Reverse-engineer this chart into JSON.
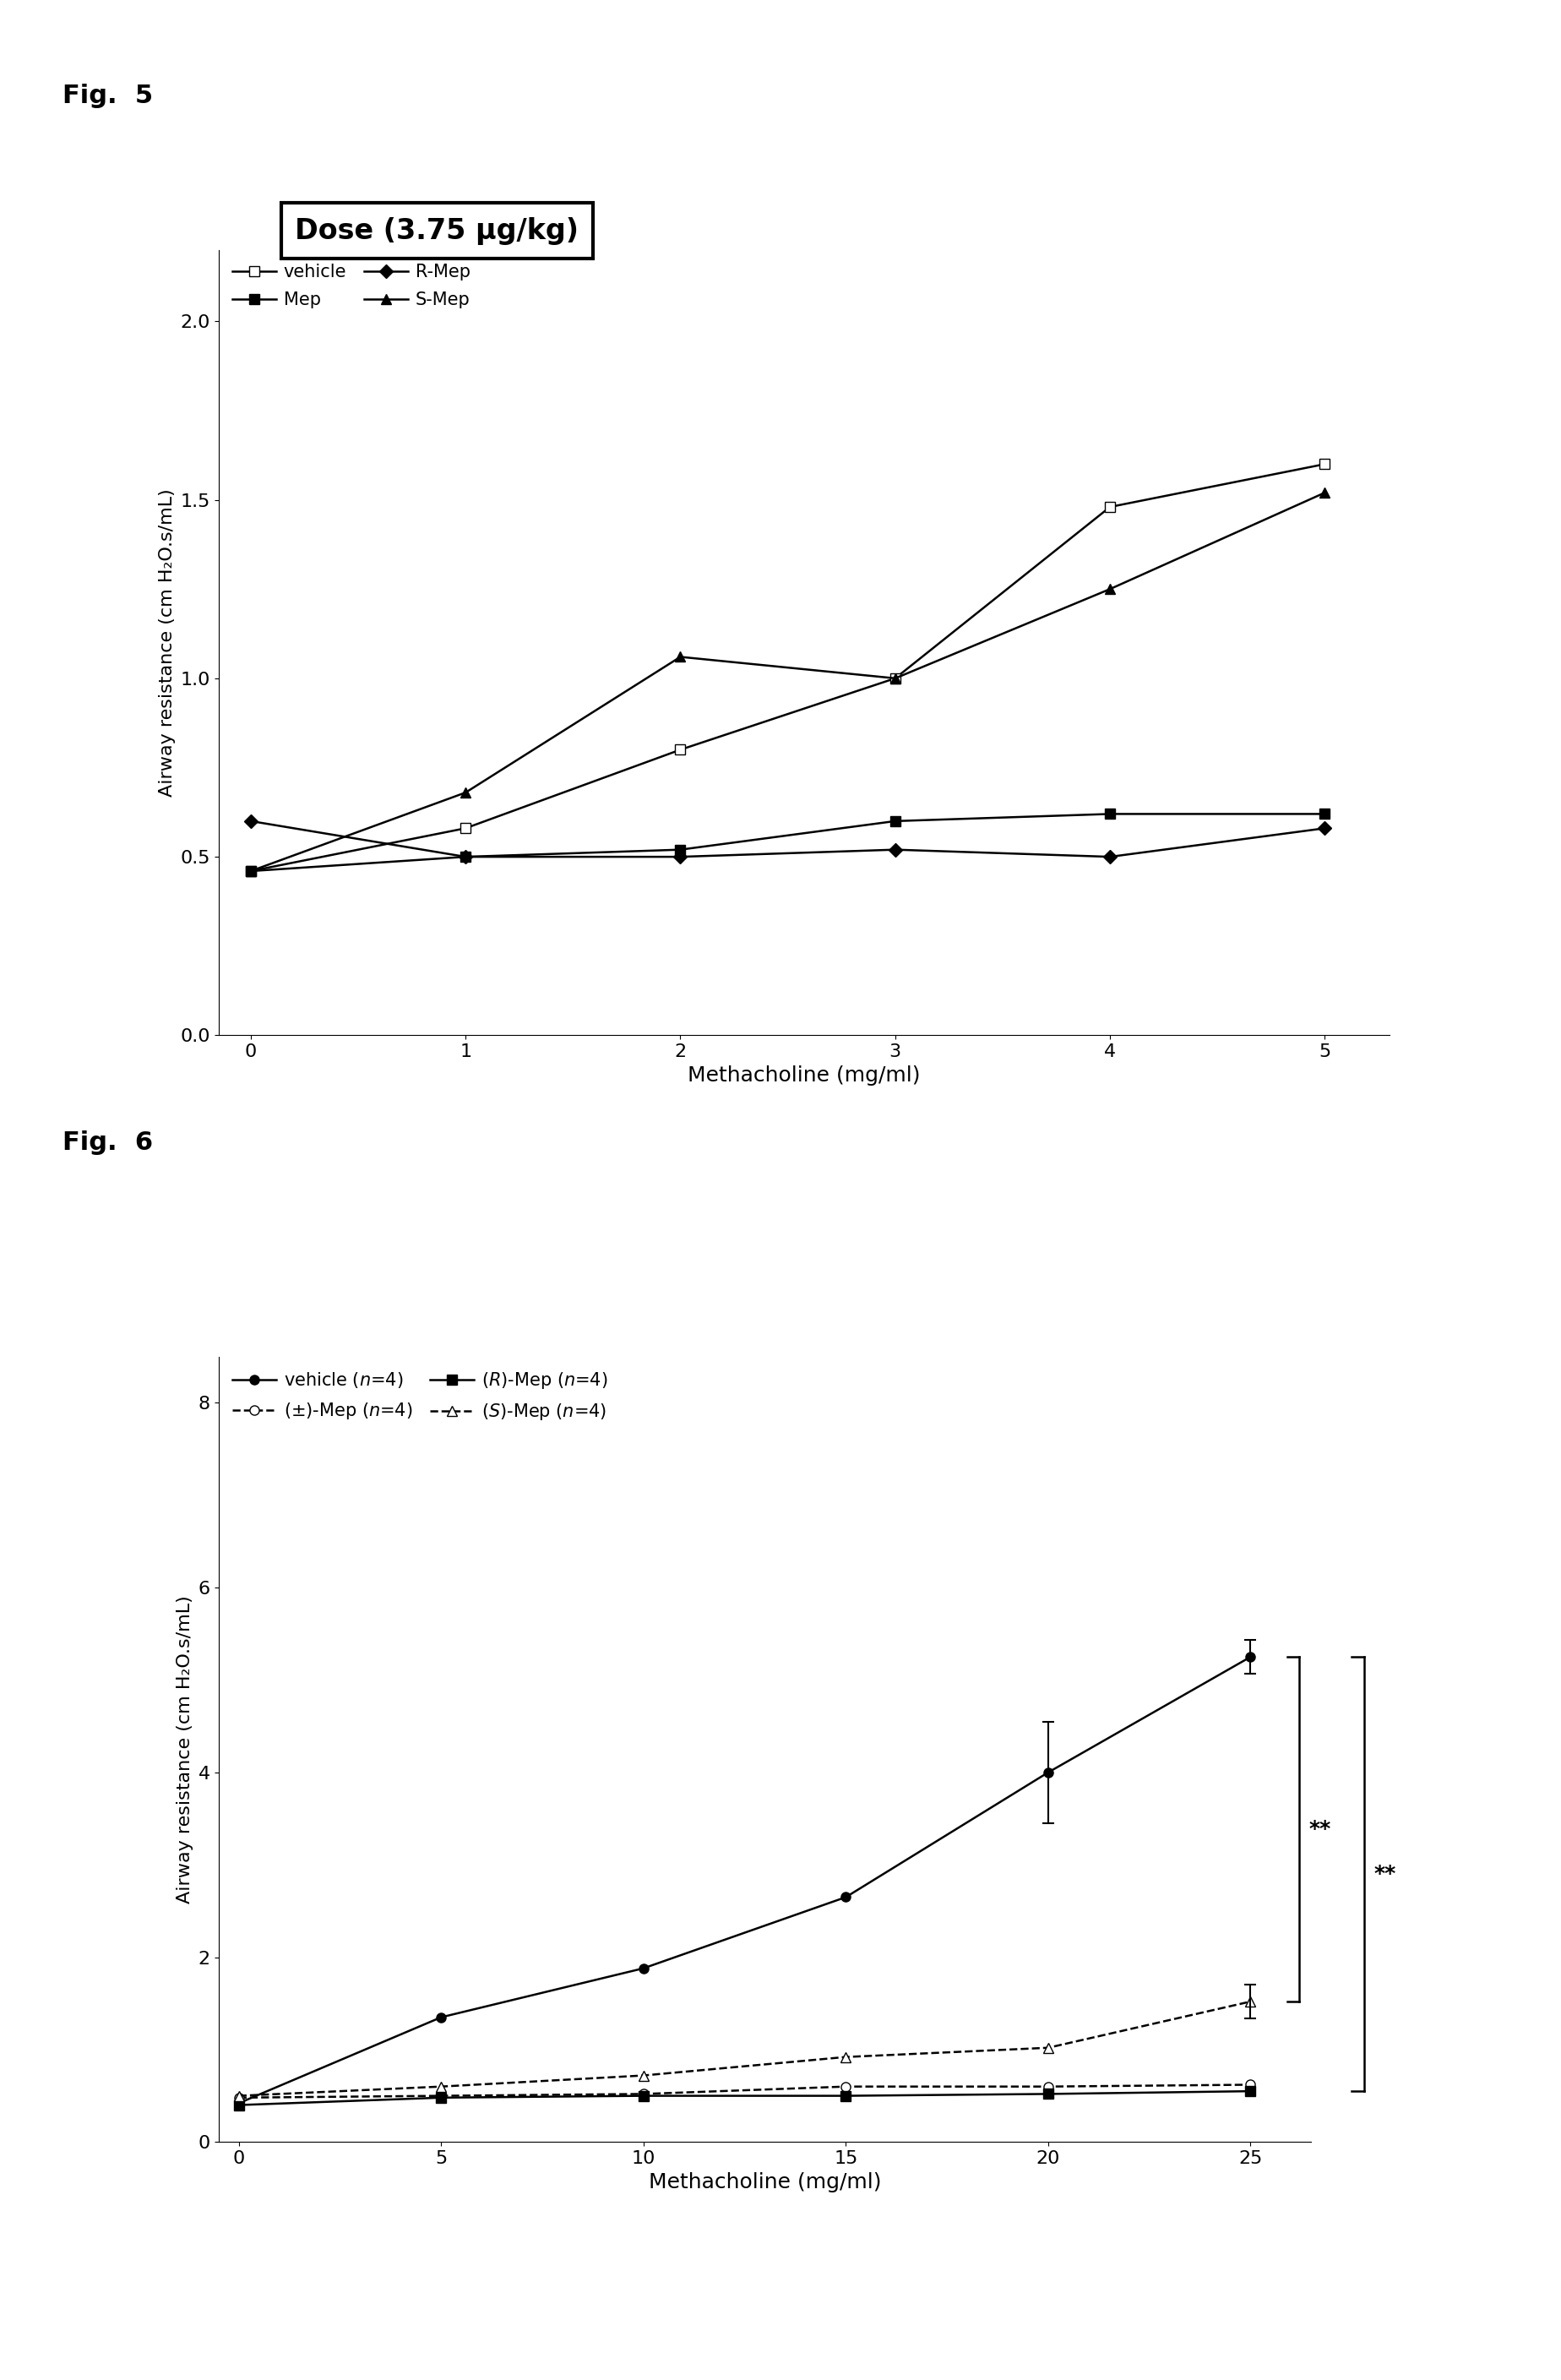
{
  "fig5": {
    "title_label": "Dose (3.75 μg/kg)",
    "xlabel": "Methacholine (mg/ml)",
    "ylabel": "Airway resistance (cm H₂O.s/mL)",
    "xlim": [
      -0.15,
      5.3
    ],
    "ylim": [
      0,
      2.2
    ],
    "yticks": [
      0,
      0.5,
      1.0,
      1.5,
      2.0
    ],
    "xticks": [
      0,
      1,
      2,
      3,
      4,
      5
    ],
    "series": {
      "vehicle": {
        "x": [
          0,
          1,
          2,
          3,
          4,
          5
        ],
        "y": [
          0.46,
          0.58,
          0.8,
          1.0,
          1.48,
          1.6
        ],
        "marker": "s",
        "mfc": "white",
        "color": "black",
        "ls": "-",
        "label": "vehicle"
      },
      "Mep": {
        "x": [
          0,
          1,
          2,
          3,
          4,
          5
        ],
        "y": [
          0.46,
          0.5,
          0.52,
          0.6,
          0.62,
          0.62
        ],
        "marker": "s",
        "mfc": "black",
        "color": "black",
        "ls": "-",
        "label": "Mep"
      },
      "R-Mep": {
        "x": [
          0,
          1,
          2,
          3,
          4,
          5
        ],
        "y": [
          0.6,
          0.5,
          0.5,
          0.52,
          0.5,
          0.58
        ],
        "marker": "D",
        "mfc": "black",
        "color": "black",
        "ls": "-",
        "label": "R-Mep"
      },
      "S-Mep": {
        "x": [
          0,
          1,
          2,
          3,
          4,
          5
        ],
        "y": [
          0.46,
          0.68,
          1.06,
          1.0,
          1.25,
          1.52
        ],
        "marker": "^",
        "mfc": "black",
        "color": "black",
        "ls": "-",
        "label": "S-Mep"
      }
    }
  },
  "fig6": {
    "xlabel": "Methacholine (mg/ml)",
    "ylabel": "Airway resistance (cm H₂O.s/mL)",
    "xlim": [
      -0.5,
      26.5
    ],
    "ylim": [
      0,
      8.5
    ],
    "yticks": [
      0,
      2,
      4,
      6,
      8
    ],
    "xticks": [
      0,
      5,
      10,
      15,
      20,
      25
    ],
    "series": {
      "vehicle": {
        "x": [
          0,
          5,
          10,
          15,
          20,
          25
        ],
        "y": [
          0.42,
          1.35,
          1.88,
          2.65,
          4.0,
          5.25
        ],
        "yerr": [
          0,
          0,
          0,
          0,
          0.55,
          0.18
        ],
        "marker": "o",
        "mfc": "black",
        "color": "black",
        "ls": "-",
        "label": "vehicle (n=4)"
      },
      "pm_Mep": {
        "x": [
          0,
          5,
          10,
          15,
          20,
          25
        ],
        "y": [
          0.48,
          0.5,
          0.52,
          0.6,
          0.6,
          0.62
        ],
        "yerr": [
          0,
          0,
          0,
          0,
          0,
          0
        ],
        "marker": "o",
        "mfc": "white",
        "color": "black",
        "ls": "--",
        "label": "(±)-Mep (n=4)"
      },
      "R_Mep": {
        "x": [
          0,
          5,
          10,
          15,
          20,
          25
        ],
        "y": [
          0.4,
          0.48,
          0.5,
          0.5,
          0.52,
          0.55
        ],
        "yerr": [
          0,
          0,
          0,
          0,
          0,
          0
        ],
        "marker": "s",
        "mfc": "black",
        "color": "black",
        "ls": "-",
        "label": "(R)-Mep (n=4)"
      },
      "S_Mep": {
        "x": [
          0,
          5,
          10,
          15,
          20,
          25
        ],
        "y": [
          0.5,
          0.6,
          0.72,
          0.92,
          1.02,
          1.52
        ],
        "yerr": [
          0,
          0,
          0,
          0,
          0,
          0.18
        ],
        "marker": "^",
        "mfc": "white",
        "color": "black",
        "ls": "--",
        "label": "(S)-Mep (n=4)"
      }
    }
  }
}
